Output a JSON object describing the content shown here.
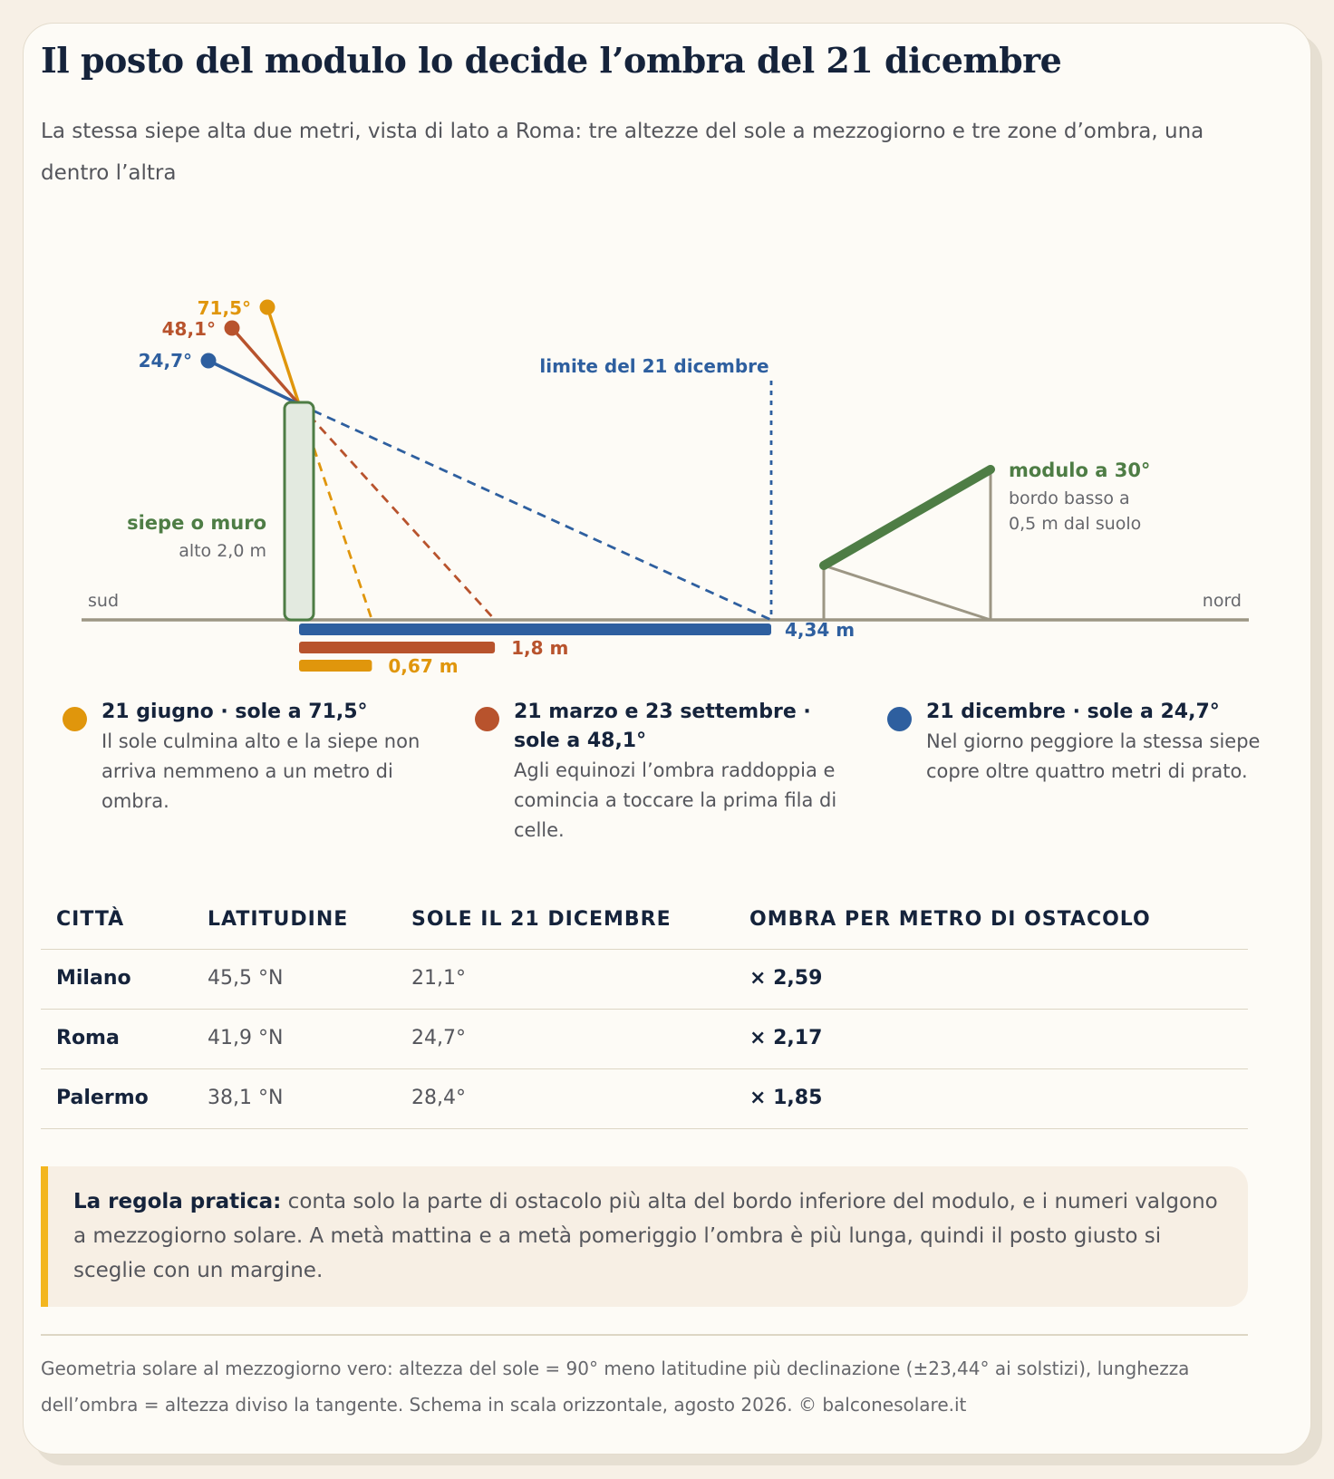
{
  "header": {
    "title": "Il posto del modulo lo decide l’ombra del 21 dicembre",
    "subtitle": "La stessa siepe alta due metri, vista di lato a Roma: tre altezze del sole a mezzogiorno e tre zone d’ombra, una dentro l’altra"
  },
  "colors": {
    "june": "#e0960c",
    "equinox": "#b8532d",
    "december": "#2e5f9f",
    "module": "#4e7d45",
    "ground": "#9c9684",
    "dark": "#15233b"
  },
  "diagram": {
    "direction_south": "sud",
    "direction_north": "nord",
    "obstacle_label": "siepe o muro",
    "obstacle_height": "alto 2,0 m",
    "limit_label": "limite del 21 dicembre",
    "module_label": "modulo a 30°",
    "module_desc_line1": "bordo basso a",
    "module_desc_line2": "0,5 m dal suolo",
    "suns": [
      {
        "angle_label": "71,5°",
        "shadow_label": "0,67 m",
        "elevation_deg": 71.5,
        "shadow_m": 0.67,
        "color": "#e0960c"
      },
      {
        "angle_label": "48,1°",
        "shadow_label": "1,8 m",
        "elevation_deg": 48.1,
        "shadow_m": 1.8,
        "color": "#b8532d"
      },
      {
        "angle_label": "24,7°",
        "shadow_label": "4,34 m",
        "elevation_deg": 24.7,
        "shadow_m": 4.34,
        "color": "#2e5f9f"
      }
    ]
  },
  "legend": [
    {
      "title": "21 giugno · sole a 71,5°",
      "desc": "Il sole culmina alto e la siepe non arriva nemmeno a un metro di ombra.",
      "color": "#e0960c"
    },
    {
      "title": "21 marzo e 23 settembre · sole a 48,1°",
      "desc": "Agli equinozi l’ombra raddoppia e comincia a toccare la prima fila di celle.",
      "color": "#b8532d"
    },
    {
      "title": "21 dicembre · sole a 24,7°",
      "desc": "Nel giorno peggiore la stessa siepe copre oltre quattro metri di prato.",
      "color": "#2e5f9f"
    }
  ],
  "table": {
    "headers": [
      "CITTÀ",
      "LATITUDINE",
      "SOLE IL 21 DICEMBRE",
      "OMBRA PER METRO DI OSTACOLO"
    ],
    "rows": [
      {
        "city": "Milano",
        "lat": "45,5 °N",
        "sun": "21,1°",
        "factor": "× 2,59"
      },
      {
        "city": "Roma",
        "lat": "41,9 °N",
        "sun": "24,7°",
        "factor": "× 2,17"
      },
      {
        "city": "Palermo",
        "lat": "38,1 °N",
        "sun": "28,4°",
        "factor": "× 1,85"
      }
    ]
  },
  "note": {
    "strong": "La regola pratica:",
    "text": " conta solo la parte di ostacolo più alta del bordo inferiore del modulo, e i numeri valgono a mezzogiorno solare. A metà mattina e a metà pomeriggio l’ombra è più lunga, quindi il posto giusto si sceglie con un margine."
  },
  "footer": "Geometria solare al mezzogiorno vero: altezza del sole = 90° meno latitudine più declinazione (±23,44° ai solstizi), lunghezza dell’ombra = altezza diviso la tangente. Schema in scala orizzontale, agosto 2026. © balconesolare.it"
}
